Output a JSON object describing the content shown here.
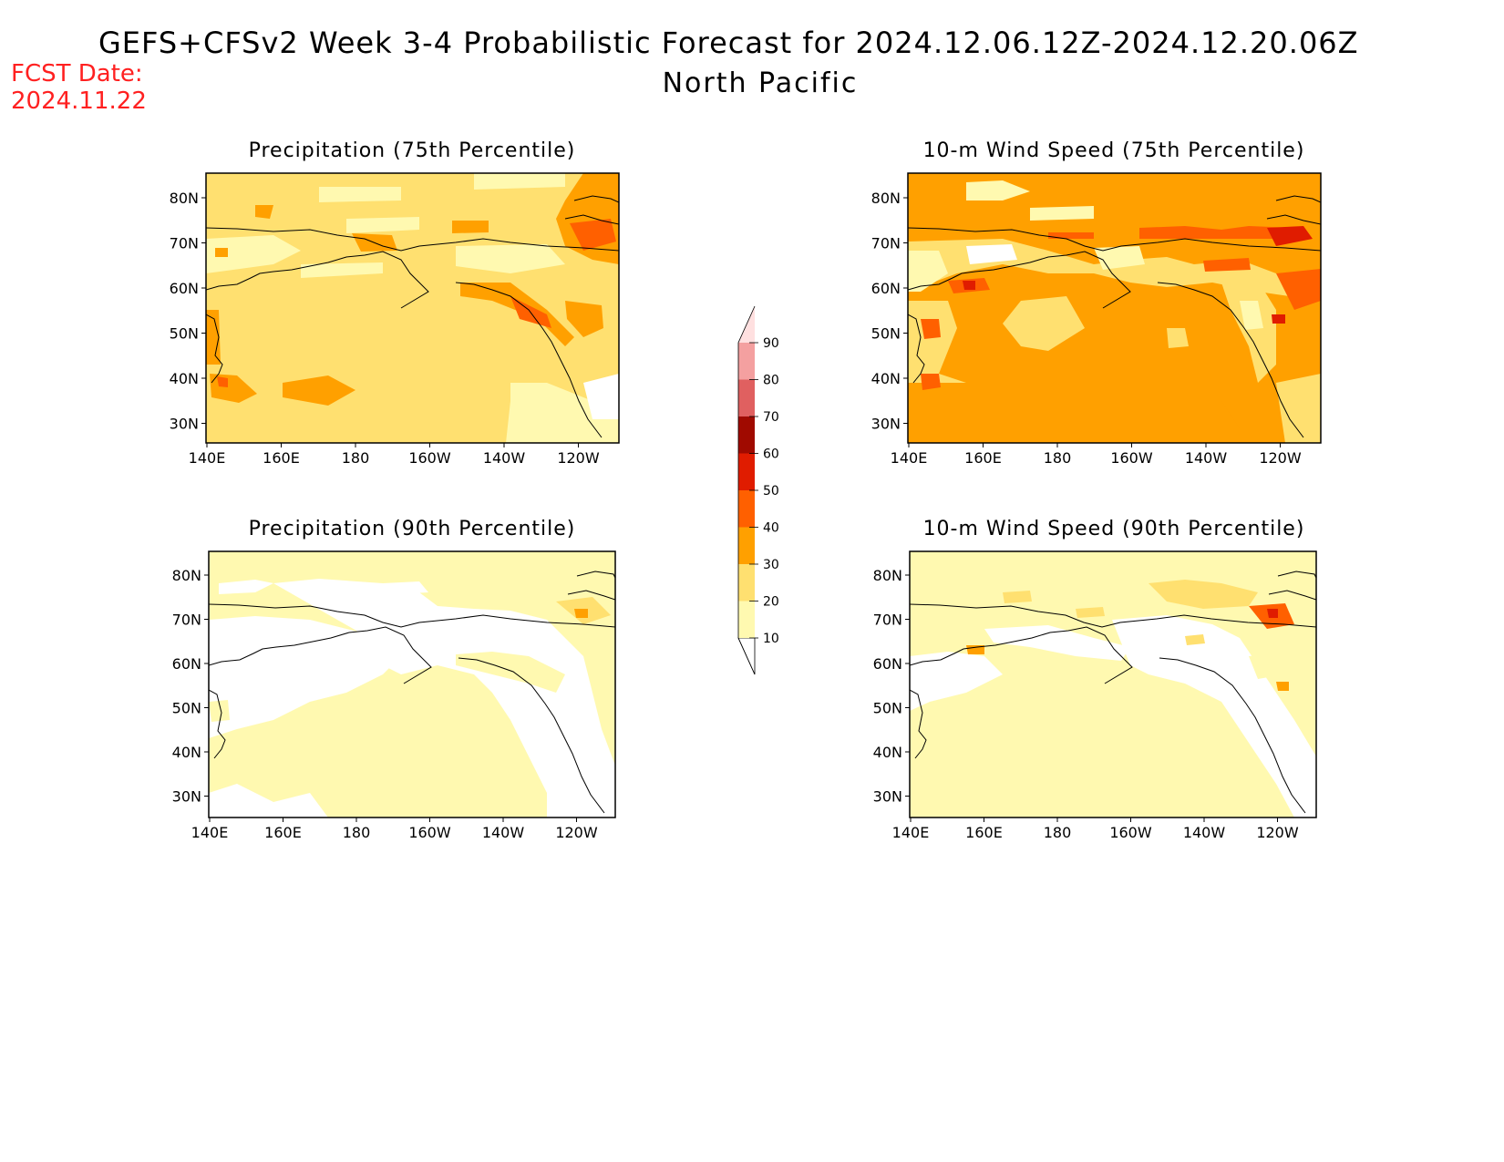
{
  "header": {
    "title": "GEFS+CFSv2 Week 3-4 Probabilistic Forecast for 2024.12.06.12Z-2024.12.20.06Z",
    "region": "North Pacific",
    "fcst_date_label": "FCST Date:",
    "fcst_date_value": "2024.11.22"
  },
  "axes": {
    "x_ticks": [
      "140E",
      "160E",
      "180",
      "160W",
      "140W",
      "120W"
    ],
    "y_ticks": [
      "80N",
      "70N",
      "60N",
      "50N",
      "40N",
      "30N"
    ]
  },
  "panels": [
    {
      "id": "precip-75",
      "title": "Precipitation (75th Percentile)"
    },
    {
      "id": "wind-75",
      "title": "10-m Wind Speed (75th Percentile)"
    },
    {
      "id": "precip-90",
      "title": "Precipitation (90th Percentile)"
    },
    {
      "id": "wind-90",
      "title": "10-m Wind Speed (90th Percentile)"
    }
  ],
  "colorbar": {
    "levels": [
      "10",
      "20",
      "30",
      "40",
      "50",
      "60",
      "70",
      "80",
      "90"
    ],
    "colors": [
      "#fff9b0",
      "#ffe070",
      "#ffa000",
      "#ff6000",
      "#e01c00",
      "#a00a00",
      "#e06060",
      "#f4a0a0",
      "#ffe0e0"
    ]
  },
  "colors": {
    "fcst_date": "#ff2020",
    "light_yellow": "#fff9b0",
    "yellow": "#ffe070",
    "orange": "#ffa000",
    "dark_orange": "#ff6000",
    "red": "#e01c00"
  }
}
